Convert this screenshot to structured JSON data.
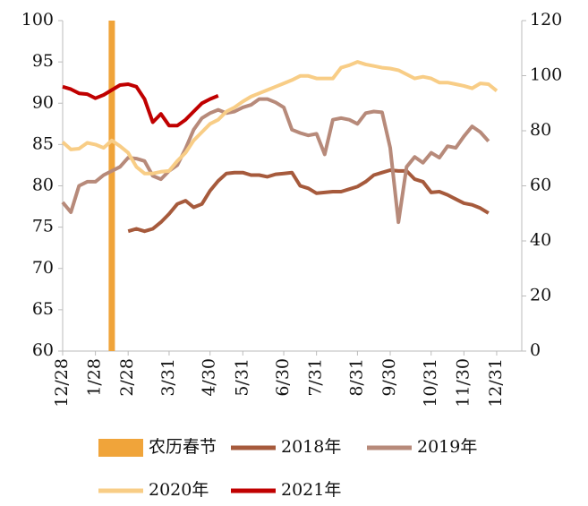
{
  "chart_data": {
    "type": "line",
    "categories": [
      "12/28",
      null,
      null,
      null,
      "1/28",
      null,
      null,
      null,
      "2/28",
      null,
      null,
      null,
      null,
      "3/31",
      null,
      null,
      null,
      null,
      "4/30",
      null,
      null,
      null,
      "5/31",
      null,
      null,
      null,
      null,
      "6/30",
      null,
      null,
      null,
      "7/31",
      null,
      null,
      null,
      null,
      "8/31",
      null,
      null,
      null,
      "9/30",
      null,
      null,
      null,
      null,
      "10/31",
      null,
      null,
      null,
      "11/30",
      null,
      null,
      null,
      "12/31"
    ],
    "ylim": [
      60,
      100
    ],
    "yticks": [
      60,
      65,
      70,
      75,
      80,
      85,
      90,
      95,
      100
    ],
    "y2lim": [
      0,
      120
    ],
    "y2ticks": [
      0,
      20,
      40,
      60,
      80,
      100,
      120
    ],
    "series": [
      {
        "name": "农历春节",
        "type": "bar",
        "axis": "y2",
        "color": "#f0a43a",
        "values": [
          null,
          null,
          null,
          null,
          null,
          null,
          120,
          null,
          null,
          null,
          null,
          null,
          null,
          null,
          null,
          null,
          null,
          null,
          null,
          null,
          null,
          null,
          null,
          null,
          null,
          null,
          null,
          null,
          null,
          null,
          null,
          null,
          null,
          null,
          null,
          null,
          null,
          null,
          null,
          null,
          null,
          null,
          null,
          null,
          null,
          null,
          null,
          null,
          null,
          null,
          null,
          null,
          null,
          null
        ]
      },
      {
        "name": "2018年",
        "color": "#a65a3c",
        "values": [
          null,
          null,
          null,
          null,
          null,
          null,
          null,
          null,
          74.5,
          74.8,
          74.5,
          74.8,
          75.6,
          76.6,
          77.8,
          78.2,
          77.4,
          77.8,
          79.4,
          80.6,
          81.5,
          81.6,
          81.6,
          81.3,
          81.3,
          81.1,
          81.4,
          81.5,
          81.6,
          80,
          79.7,
          79.1,
          79.2,
          79.3,
          79.3,
          79.6,
          79.9,
          80.5,
          81.3,
          81.6,
          81.9,
          81.8,
          81.8,
          80.8,
          80.5,
          79.2,
          79.3,
          78.9,
          78.4,
          77.9,
          77.7,
          77.3,
          76.7,
          null
        ]
      },
      {
        "name": "2019年",
        "color": "#b78a7a",
        "values": [
          78,
          76.8,
          80,
          80.5,
          80.5,
          81.3,
          81.8,
          82.3,
          83.4,
          83.3,
          83,
          81.2,
          80.8,
          81.8,
          82.5,
          84.5,
          86.8,
          88.2,
          88.8,
          89.2,
          88.8,
          89,
          89.5,
          89.8,
          90.5,
          90.5,
          90.1,
          89.5,
          86.8,
          86.4,
          86.1,
          86.3,
          83.8,
          88,
          88.2,
          88,
          87.5,
          88.8,
          89,
          88.9,
          84.6,
          75.6,
          82.3,
          83.5,
          82.8,
          84,
          83.4,
          84.8,
          84.6,
          86,
          87.2,
          86.5,
          85.4,
          null
        ]
      },
      {
        "name": "2020年",
        "color": "#f8cd86",
        "values": [
          85.3,
          84.4,
          84.5,
          85.2,
          85,
          84.6,
          85.5,
          84.8,
          84,
          82.3,
          81.5,
          81.5,
          81.7,
          81.8,
          83,
          84,
          85.5,
          86.5,
          87.5,
          88,
          89,
          89.5,
          90.2,
          90.8,
          91.2,
          91.6,
          92,
          92.4,
          92.8,
          93.3,
          93.3,
          93,
          93,
          93,
          94.3,
          94.6,
          95,
          94.7,
          94.5,
          94.3,
          94.2,
          94,
          93.5,
          93,
          93.2,
          93,
          92.5,
          92.5,
          92.3,
          92.1,
          91.8,
          92.4,
          92.3,
          91.5
        ]
      },
      {
        "name": "2021年",
        "color": "#c00000",
        "values": [
          92,
          91.7,
          91.2,
          91.1,
          90.6,
          91,
          91.6,
          92.2,
          92.3,
          92,
          90.5,
          87.7,
          88.7,
          87.3,
          87.3,
          88,
          89,
          90,
          90.5,
          90.9,
          null,
          null,
          null,
          null,
          null,
          null,
          null,
          null,
          null,
          null,
          null,
          null,
          null,
          null,
          null,
          null,
          null,
          null,
          null,
          null,
          null,
          null,
          null,
          null,
          null,
          null,
          null,
          null,
          null,
          null,
          null,
          null,
          null,
          null
        ]
      }
    ]
  }
}
